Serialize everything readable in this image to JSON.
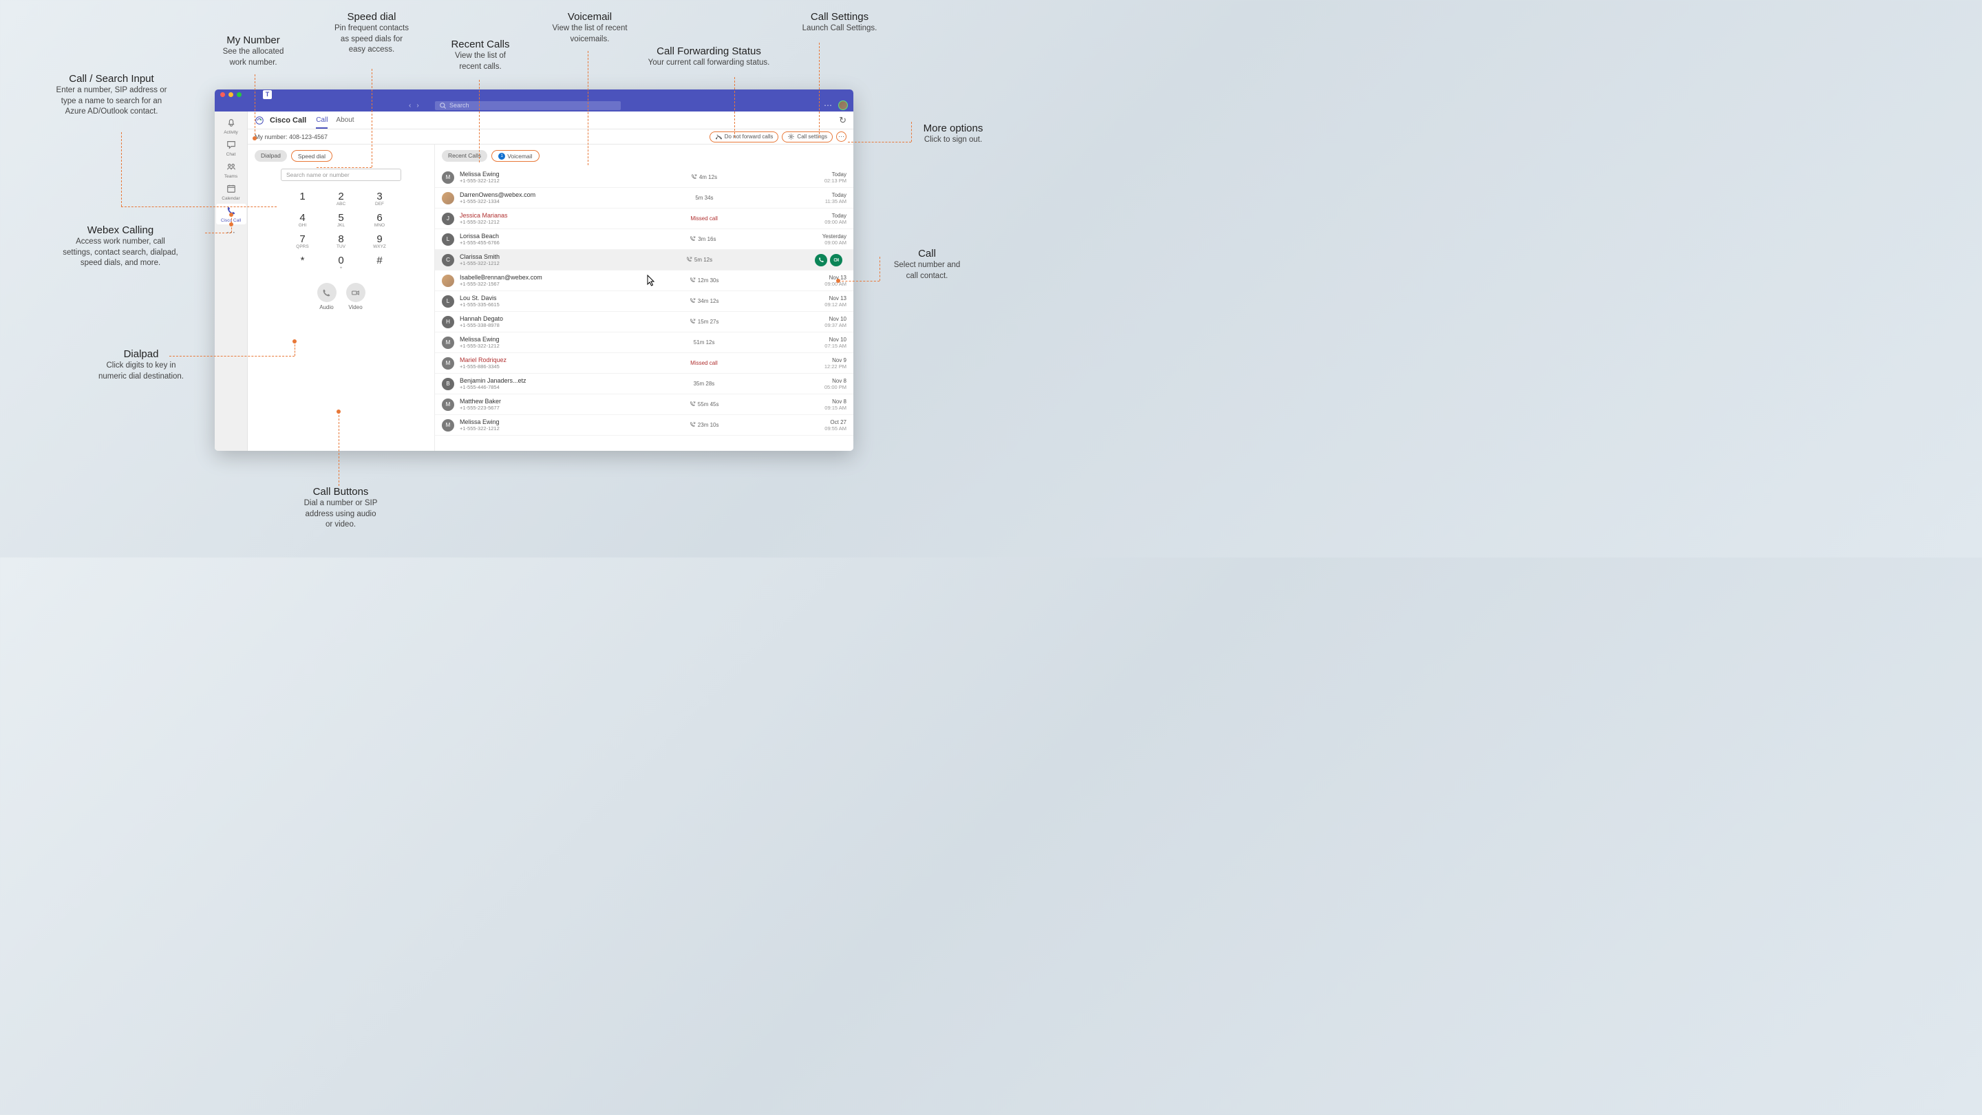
{
  "annotations": {
    "call_search": {
      "title": "Call / Search Input",
      "desc": "Enter a number, SIP address or\ntype a name to search for an\nAzure AD/Outlook contact."
    },
    "my_number": {
      "title": "My Number",
      "desc": "See the allocated\nwork number."
    },
    "speed_dial": {
      "title": "Speed dial",
      "desc": "Pin frequent contacts\nas speed dials for\neasy access."
    },
    "recent_calls": {
      "title": "Recent Calls",
      "desc": "View the list of\nrecent calls."
    },
    "voicemail": {
      "title": "Voicemail",
      "desc": "View the list of recent\nvoicemails."
    },
    "call_fwd": {
      "title": "Call Forwarding Status",
      "desc": "Your current call forwarding status."
    },
    "call_settings": {
      "title": "Call Settings",
      "desc": "Launch Call Settings."
    },
    "more_opts": {
      "title": "More options",
      "desc": "Click to sign out."
    },
    "webex": {
      "title": "Webex Calling",
      "desc": "Access work number, call\nsettings, contact search, dialpad,\nspeed dials, and more."
    },
    "dialpad": {
      "title": "Dialpad",
      "desc": "Click digits to key in\nnumeric dial destination."
    },
    "call_buttons": {
      "title": "Call Buttons",
      "desc": "Dial a number or SIP\naddress using audio\nor video."
    },
    "call": {
      "title": "Call",
      "desc": "Select number and\ncall contact."
    }
  },
  "topbar": {
    "search_placeholder": "Search"
  },
  "rail": {
    "items": [
      {
        "label": "Activity",
        "icon": "bell"
      },
      {
        "label": "Chat",
        "icon": "chat"
      },
      {
        "label": "Teams",
        "icon": "teams"
      },
      {
        "label": "Calendar",
        "icon": "calendar"
      },
      {
        "label": "Cisco Call",
        "icon": "phone",
        "active": true
      }
    ]
  },
  "header": {
    "brand": "Cisco Call",
    "tabs": [
      {
        "label": "Call",
        "active": true
      },
      {
        "label": "About"
      }
    ]
  },
  "subheader": {
    "my_number": "My number: 408-123-4567",
    "fwd_label": "Do not forward calls",
    "settings_label": "Call settings"
  },
  "left": {
    "tabs": [
      {
        "label": "Dialpad",
        "active": true
      },
      {
        "label": "Speed dial",
        "hl": true
      }
    ],
    "search_placeholder": "Search name or number",
    "keys": [
      {
        "n": "1",
        "l": ""
      },
      {
        "n": "2",
        "l": "ABC"
      },
      {
        "n": "3",
        "l": "DEF"
      },
      {
        "n": "4",
        "l": "GHI"
      },
      {
        "n": "5",
        "l": "JKL"
      },
      {
        "n": "6",
        "l": "MNO"
      },
      {
        "n": "7",
        "l": "QPRS"
      },
      {
        "n": "8",
        "l": "TUV"
      },
      {
        "n": "9",
        "l": "WXYZ"
      },
      {
        "n": "*",
        "l": ""
      },
      {
        "n": "0",
        "l": "+"
      },
      {
        "n": "#",
        "l": ""
      }
    ],
    "audio": "Audio",
    "video": "Video"
  },
  "right": {
    "tabs": [
      {
        "label": "Recent Calls",
        "active": true
      },
      {
        "label": "Voicemail",
        "hl": true,
        "badge": "1"
      }
    ],
    "calls": [
      {
        "av": "M",
        "avc": "#7a7a7a",
        "name": "Melissa Ewing",
        "num": "+1-555-322-1212",
        "mid": "4m 12s",
        "ic": true,
        "d1": "Today",
        "d2": "02:13 PM"
      },
      {
        "av": "",
        "avc": "#caa",
        "img": true,
        "name": "DarrenOwens@webex.com",
        "num": "+1-555-322-1334",
        "mid": "5m 34s",
        "d1": "Today",
        "d2": "11:35 AM"
      },
      {
        "av": "J",
        "avc": "#6b6b6b",
        "name": "Jessica Marianas",
        "num": "+1-555-322-1212",
        "mid": "Missed call",
        "missed": true,
        "d1": "Today",
        "d2": "09:00 AM"
      },
      {
        "av": "L",
        "avc": "#6b6b6b",
        "name": "Lorissa Beach",
        "num": "+1-555-455-6766",
        "mid": "3m 16s",
        "ic": true,
        "d1": "Yesterday",
        "d2": "09:00 AM"
      },
      {
        "av": "C",
        "avc": "#6b6b6b",
        "name": "Clarissa Smith",
        "num": "+1-555-322-1212",
        "mid": "5m 12s",
        "ic": true,
        "d1": "",
        "d2": "",
        "sel": true,
        "actions": true
      },
      {
        "av": "",
        "avc": "#caa",
        "img": true,
        "name": "IsabelleBrennan@webex.com",
        "num": "+1-555-322-1567",
        "mid": "12m 30s",
        "ic": true,
        "d1": "Nov 13",
        "d2": "09:00 AM"
      },
      {
        "av": "L",
        "avc": "#6b6b6b",
        "name": "Lou St. Davis",
        "num": "+1-555-335-6615",
        "mid": "34m 12s",
        "ic": true,
        "d1": "Nov 13",
        "d2": "09:12 AM"
      },
      {
        "av": "H",
        "avc": "#6b6b6b",
        "name": "Hannah Degato",
        "num": "+1-555-338-8978",
        "mid": "15m 27s",
        "ic": true,
        "d1": "Nov 10",
        "d2": "09:37 AM"
      },
      {
        "av": "M",
        "avc": "#7a7a7a",
        "name": "Melissa Ewing",
        "num": "+1-555-322-1212",
        "mid": "51m 12s",
        "d1": "Nov 10",
        "d2": "07:15 AM"
      },
      {
        "av": "M",
        "avc": "#7a7a7a",
        "name": "Mariel Rodriquez",
        "num": "+1-555-886-3345",
        "mid": "Missed call",
        "missed": true,
        "d1": "Nov 9",
        "d2": "12:22 PM"
      },
      {
        "av": "B",
        "avc": "#6b6b6b",
        "name": "Benjamin Janaders...etz",
        "num": "+1-555-446-7854",
        "mid": "35m 28s",
        "d1": "Nov 8",
        "d2": "05:00 PM"
      },
      {
        "av": "M",
        "avc": "#7a7a7a",
        "name": "Matthew Baker",
        "num": "+1-555-223-5677",
        "mid": "55m 45s",
        "ic": true,
        "d1": "Nov 8",
        "d2": "09:15 AM"
      },
      {
        "av": "M",
        "avc": "#7a7a7a",
        "name": "Melissa Ewing",
        "num": "+1-555-322-1212",
        "mid": "23m 10s",
        "ic": true,
        "d1": "Oct 27",
        "d2": "09:55 AM"
      }
    ]
  },
  "colors": {
    "accent": "#4b53bc",
    "orange": "#e87838",
    "green": "#0b8457"
  }
}
